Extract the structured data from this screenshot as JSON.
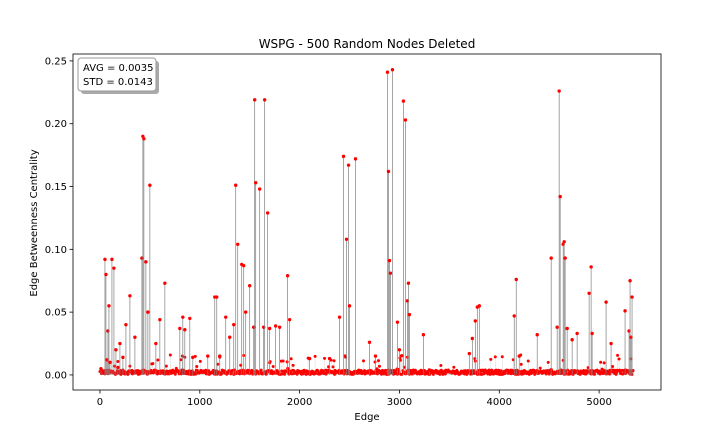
{
  "chart_data": {
    "type": "scatter",
    "title": "WSPG - 500 Random Nodes Deleted",
    "xlabel": "Edge",
    "ylabel": "Edge Betweenness Centrality",
    "xlim": [
      -270,
      5620
    ],
    "ylim": [
      -0.012,
      0.2555
    ],
    "xticks": [
      0,
      1000,
      2000,
      3000,
      4000,
      5000
    ],
    "yticks": [
      0.0,
      0.05,
      0.1,
      0.15,
      0.2,
      0.25
    ],
    "ytick_labels": [
      "0.00",
      "0.05",
      "0.10",
      "0.15",
      "0.20",
      "0.25"
    ],
    "stats": {
      "avg": "AVG = 0.0035",
      "std": "STD = 0.0143"
    },
    "stats_placement": "top-left",
    "marker_color": "#ff0000",
    "stem_color": "#808080",
    "grid": false,
    "series": [
      {
        "x": [
          10,
          50,
          60,
          70,
          80,
          90,
          100,
          120,
          140,
          160,
          180,
          200,
          230,
          260,
          300,
          350,
          420,
          430,
          440,
          460,
          480,
          500,
          560,
          600,
          650,
          700,
          800,
          830,
          850,
          900,
          930,
          1000,
          1080,
          1150,
          1170,
          1200,
          1260,
          1300,
          1340,
          1360,
          1380,
          1420,
          1440,
          1460,
          1500,
          1540,
          1550,
          1560,
          1600,
          1640,
          1650,
          1680,
          1700,
          1760,
          1800,
          1880,
          1900,
          2100,
          2300,
          2400,
          2440,
          2470,
          2490,
          2500,
          2560,
          2700,
          2760,
          2880,
          2890,
          2900,
          2910,
          2930,
          2980,
          3000,
          3040,
          3060,
          3080,
          3090,
          3100,
          3240,
          3300,
          3700,
          3730,
          3760,
          3780,
          3800,
          4150,
          4170,
          4200,
          4380,
          4520,
          4580,
          4600,
          4610,
          4640,
          4650,
          4660,
          4680,
          4730,
          4780,
          4900,
          4920,
          4930,
          5070,
          5120,
          5260,
          5300,
          5310,
          5320,
          5330
        ],
        "y": [
          0.005,
          0.092,
          0.08,
          0.012,
          0.035,
          0.055,
          0.01,
          0.092,
          0.085,
          0.02,
          0.006,
          0.025,
          0.014,
          0.04,
          0.063,
          0.03,
          0.093,
          0.19,
          0.188,
          0.09,
          0.05,
          0.151,
          0.025,
          0.044,
          0.073,
          0.003,
          0.037,
          0.046,
          0.036,
          0.045,
          0.014,
          0.002,
          0.015,
          0.062,
          0.062,
          0.015,
          0.046,
          0.03,
          0.04,
          0.151,
          0.104,
          0.088,
          0.087,
          0.05,
          0.071,
          0.038,
          0.219,
          0.153,
          0.148,
          0.038,
          0.219,
          0.129,
          0.037,
          0.039,
          0.038,
          0.079,
          0.044,
          0.013,
          0.013,
          0.046,
          0.174,
          0.108,
          0.167,
          0.055,
          0.172,
          0.026,
          0.015,
          0.241,
          0.162,
          0.091,
          0.081,
          0.243,
          0.042,
          0.02,
          0.218,
          0.203,
          0.059,
          0.073,
          0.048,
          0.032,
          0.004,
          0.017,
          0.029,
          0.043,
          0.054,
          0.055,
          0.047,
          0.076,
          0.015,
          0.032,
          0.093,
          0.038,
          0.226,
          0.142,
          0.104,
          0.106,
          0.093,
          0.037,
          0.028,
          0.033,
          0.065,
          0.086,
          0.033,
          0.058,
          0.025,
          0.051,
          0.035,
          0.075,
          0.03,
          0.062
        ]
      }
    ]
  }
}
